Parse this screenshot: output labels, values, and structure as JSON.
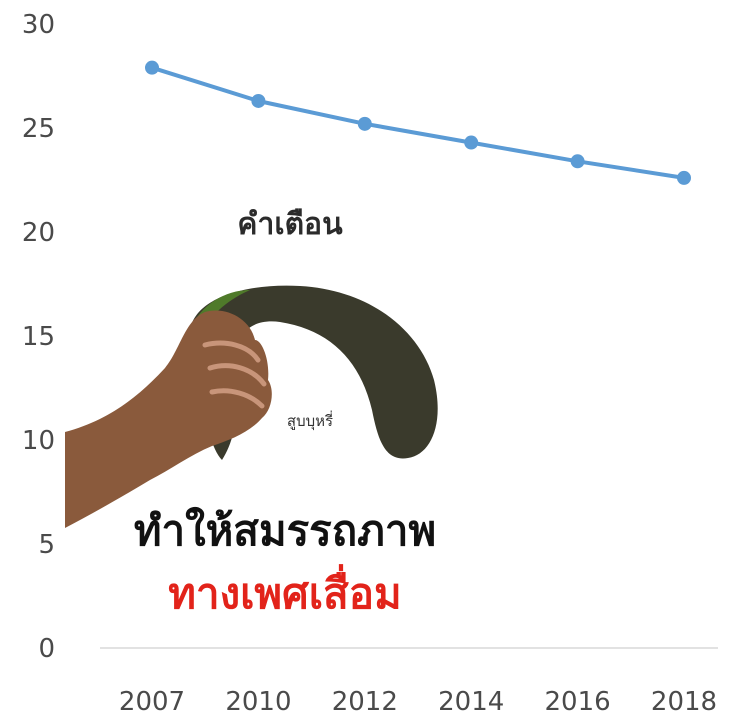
{
  "chart_data": {
    "type": "line",
    "title": "",
    "xlabel": "",
    "ylabel": "",
    "categories": [
      "2007",
      "2010",
      "2012",
      "2014",
      "2016",
      "2018"
    ],
    "series": [
      {
        "values": [
          27.9,
          26.3,
          25.2,
          24.3,
          23.4,
          22.6
        ]
      }
    ],
    "ylim": [
      0,
      30
    ],
    "yticks": [
      0,
      5,
      10,
      15,
      20,
      25,
      30
    ],
    "grid": false,
    "line_color": "#5b9bd5",
    "axis_color": "#d9d9d9"
  },
  "warning": {
    "title": "คำเตือน",
    "product_label": "สูบบุหรี่",
    "line1": "ทำให้สมรรถภาพ",
    "line2": "ทางเพศเสื่อม",
    "line2_color": "#e2231a"
  }
}
